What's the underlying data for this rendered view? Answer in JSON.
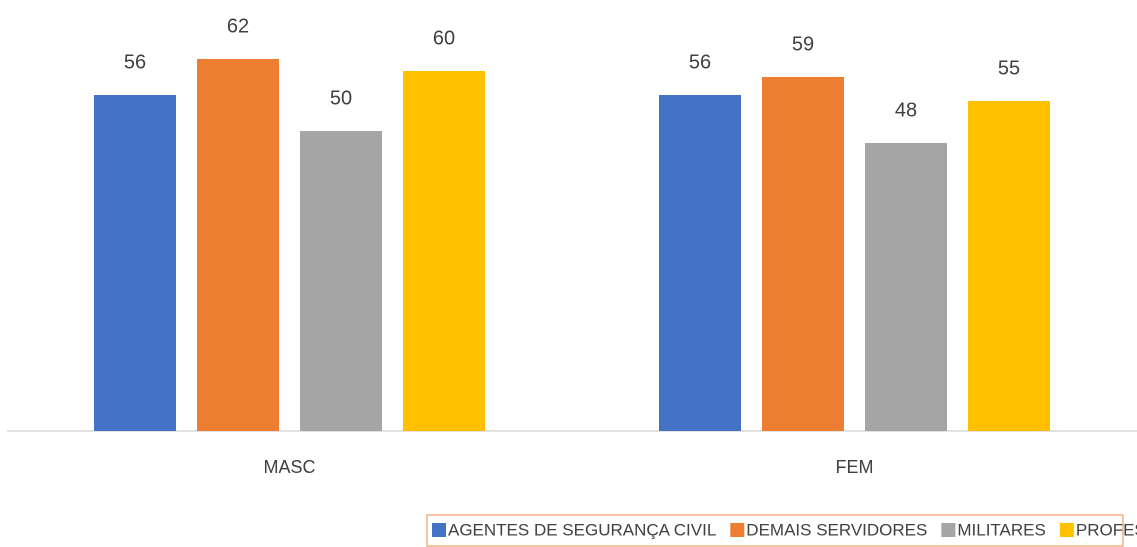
{
  "chart_data": {
    "type": "bar",
    "categories": [
      "MASC",
      "FEM"
    ],
    "series": [
      {
        "name": "AGENTES DE SEGURANÇA CIVIL",
        "color": "#4472c4",
        "values": [
          56,
          56
        ]
      },
      {
        "name": "DEMAIS SERVIDORES",
        "color": "#ed7d31",
        "values": [
          62,
          59
        ]
      },
      {
        "name": "MILITARES",
        "color": "#a5a5a5",
        "values": [
          50,
          48
        ]
      },
      {
        "name": "PROFESSORES(AS)",
        "color": "#ffc000",
        "values": [
          60,
          55
        ]
      }
    ],
    "ylim": [
      0,
      70
    ],
    "legend": "bottom"
  }
}
